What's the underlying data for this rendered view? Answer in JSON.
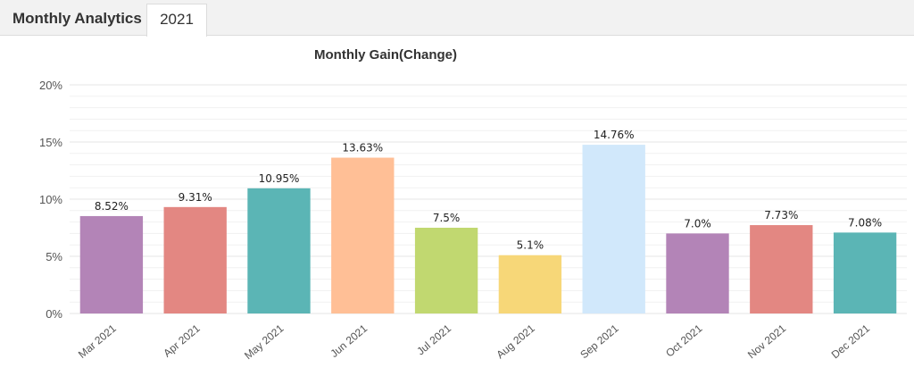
{
  "header": {
    "section_label": "Monthly Analytics",
    "year_tab": "2021"
  },
  "colors": {
    "purple": "#b384b7",
    "red": "#e38782",
    "teal": "#5bb5b5",
    "peach": "#ffbf96",
    "lime": "#c1d870",
    "yellow": "#f7d778",
    "light_blue": "#d1e8fb",
    "grid": "#e6e6e6",
    "axis_text": "#555555"
  },
  "chart_data": {
    "type": "bar",
    "title": "Monthly Gain(Change)",
    "xlabel": "",
    "ylabel": "",
    "ylim": [
      0,
      20
    ],
    "yticks": [
      0,
      5,
      10,
      15,
      20
    ],
    "ytick_labels": [
      "0%",
      "5%",
      "10%",
      "15%",
      "20%"
    ],
    "grid": true,
    "categories": [
      "Mar 2021",
      "Apr 2021",
      "May 2021",
      "Jun 2021",
      "Jul 2021",
      "Aug 2021",
      "Sep 2021",
      "Oct 2021",
      "Nov 2021",
      "Dec 2021"
    ],
    "values": [
      8.52,
      9.31,
      10.95,
      13.63,
      7.5,
      5.1,
      14.76,
      7.0,
      7.73,
      7.08
    ],
    "data_labels": [
      "8.52%",
      "9.31%",
      "10.95%",
      "13.63%",
      "7.5%",
      "5.1%",
      "14.76%",
      "7.0%",
      "7.73%",
      "7.08%"
    ],
    "bar_colors": [
      "#b384b7",
      "#e38782",
      "#5bb5b5",
      "#ffbf96",
      "#c1d870",
      "#f7d778",
      "#d1e8fb",
      "#b384b7",
      "#e38782",
      "#5bb5b5"
    ]
  }
}
